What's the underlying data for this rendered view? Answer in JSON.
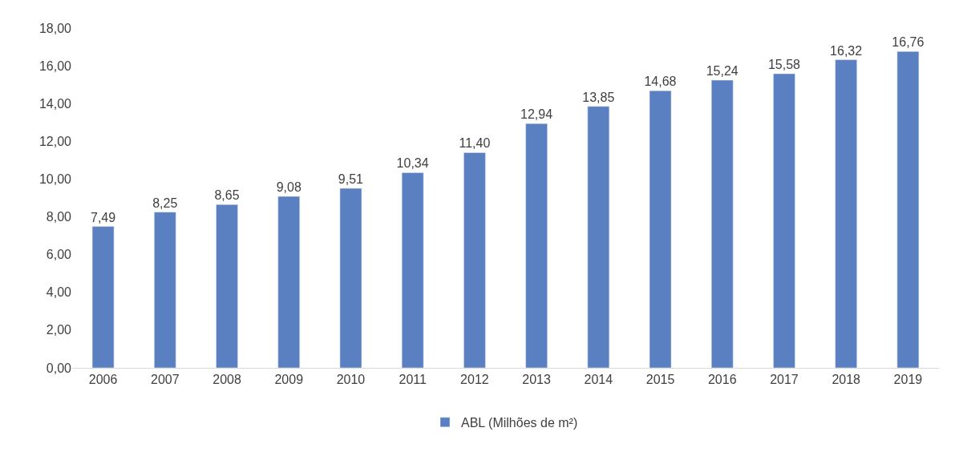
{
  "chart_data": {
    "type": "bar",
    "categories": [
      "2006",
      "2007",
      "2008",
      "2009",
      "2010",
      "2011",
      "2012",
      "2013",
      "2014",
      "2015",
      "2016",
      "2017",
      "2018",
      "2019"
    ],
    "series": [
      {
        "name": "ABL (Milhões de m²)",
        "color": "#5b80c2",
        "values": [
          7.49,
          8.25,
          8.65,
          9.08,
          9.51,
          10.34,
          11.4,
          12.94,
          13.85,
          14.68,
          15.24,
          15.58,
          16.32,
          16.76
        ],
        "value_labels": [
          "7,49",
          "8,25",
          "8,65",
          "9,08",
          "9,51",
          "10,34",
          "11,40",
          "12,94",
          "13,85",
          "14,68",
          "15,24",
          "15,58",
          "16,32",
          "16,76"
        ]
      }
    ],
    "ylim": [
      0,
      18
    ],
    "yticks": [
      {
        "value": 0,
        "label": "0,00"
      },
      {
        "value": 2,
        "label": "2,00"
      },
      {
        "value": 4,
        "label": "4,00"
      },
      {
        "value": 6,
        "label": "6,00"
      },
      {
        "value": 8,
        "label": "8,00"
      },
      {
        "value": 10,
        "label": "10,00"
      },
      {
        "value": 12,
        "label": "12,00"
      },
      {
        "value": 14,
        "label": "14,00"
      },
      {
        "value": 16,
        "label": "16,00"
      },
      {
        "value": 18,
        "label": "18,00"
      }
    ],
    "legend": "bottom"
  }
}
